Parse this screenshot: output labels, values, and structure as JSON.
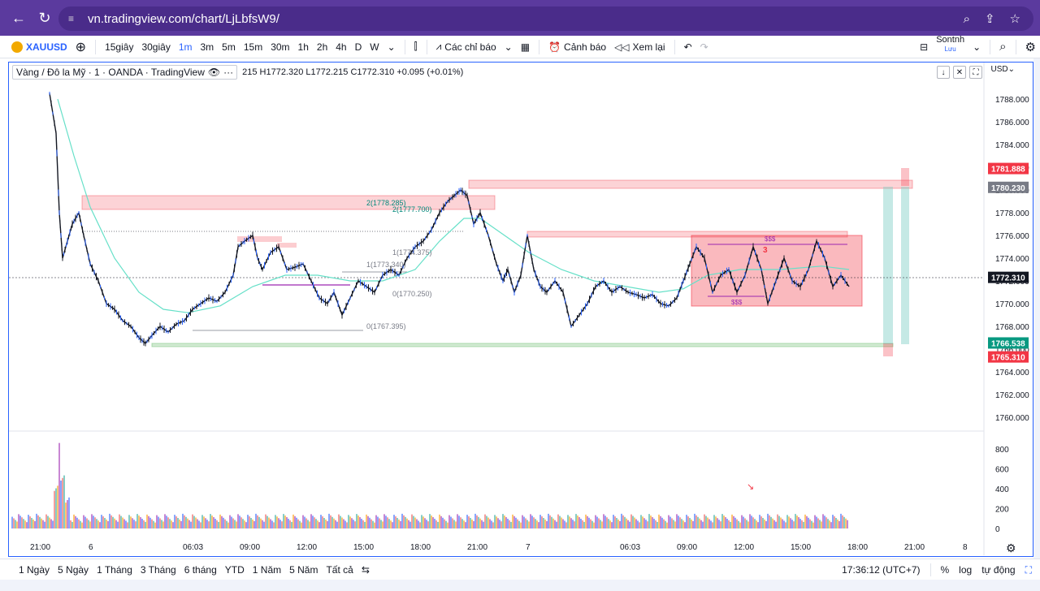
{
  "browser": {
    "url": "vn.tradingview.com/chart/LjLbfsW9/"
  },
  "toolbar": {
    "symbol": "XAUUSD",
    "intervals": [
      "15giây",
      "30giây",
      "1m",
      "3m",
      "5m",
      "15m",
      "30m",
      "1h",
      "2h",
      "4h",
      "D",
      "W"
    ],
    "active_interval": "1m",
    "indicators_label": "Các chỉ báo",
    "alerts_label": "Cảnh báo",
    "replay_label": "Xem lại",
    "user_name": "Sontnh",
    "user_sub": "Lưu"
  },
  "legend": {
    "title": "Vàng / Đô la Mỹ · 1 · OANDA · TradingView",
    "ohlc": "215  H1772.320  L1772.215  C1772.310  +0.095 (+0.01%)"
  },
  "currency": "USD",
  "price_axis": {
    "ticks": [
      "1788.000",
      "1786.000",
      "1784.000",
      "1782.000",
      "1780.000",
      "1778.000",
      "1776.000",
      "1774.000",
      "1772.000",
      "1770.000",
      "1768.000",
      "1766.000",
      "1764.000",
      "1762.000",
      "1760.000"
    ],
    "tags": [
      {
        "label": "1781.888",
        "color": "#f23645"
      },
      {
        "label": "1780.230",
        "color": "#787b86"
      },
      {
        "label": "1772.310",
        "color": "#131722"
      },
      {
        "label": "1766.538",
        "color": "#089981"
      },
      {
        "label": "1765.310",
        "color": "#f23645"
      }
    ]
  },
  "volume_axis": {
    "ticks": [
      "800",
      "600",
      "400",
      "200",
      "0"
    ]
  },
  "time_axis": {
    "labels": [
      "21:00",
      "6",
      "06:03",
      "09:00",
      "12:00",
      "15:00",
      "18:00",
      "21:00",
      "7",
      "06:03",
      "09:00",
      "12:00",
      "15:00",
      "18:00",
      "21:00",
      "8"
    ]
  },
  "annotations": {
    "fib_2_a": "2(1778.285)",
    "fib_2_b": "2(1777.700)",
    "fib_1_a": "1(1774.375)",
    "fib_1_b": "1(1773.340)",
    "fib_0_a": "0(1770.250)",
    "fib_0_b": "0(1767.395)",
    "sss_top": "$$$",
    "sss_bottom": "$$$",
    "marker": "3"
  },
  "bottom_bar": {
    "ranges": [
      "1 Ngày",
      "5 Ngày",
      "1 Tháng",
      "3 Tháng",
      "6 tháng",
      "YTD",
      "1 Năm",
      "5 Năm",
      "Tất cả"
    ],
    "time": "17:36:12 (UTC+7)",
    "percent": "%",
    "log": "log",
    "auto": "tự động"
  },
  "colors": {
    "browser": "#5b3a9e",
    "accent": "#2962ff",
    "zone_red": "#f23645",
    "zone_teal": "#7fcfc6",
    "ma_line": "#66e0c8"
  }
}
